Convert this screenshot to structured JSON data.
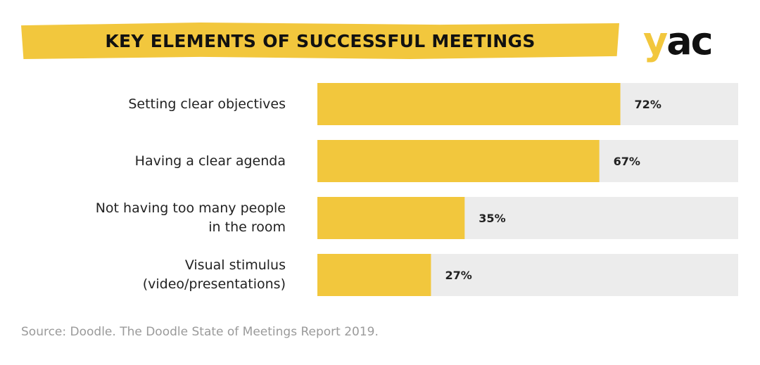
{
  "title": "KEY ELEMENTS OF SUCCESSFUL MEETINGS",
  "logo": {
    "text_y": "y",
    "text_ac": "ac"
  },
  "source": "Source: Doodle. The Doodle State of Meetings Report 2019.",
  "colors": {
    "bar": "#f2c73d",
    "track": "#ececec",
    "text": "#222222",
    "source": "#9a9a9a"
  },
  "chart_data": {
    "type": "bar",
    "orientation": "horizontal",
    "title": "KEY ELEMENTS OF SUCCESSFUL MEETINGS",
    "categories": [
      "Setting clear objectives",
      "Having a clear agenda",
      "Not having too many people in the room",
      "Visual stimulus (video/presentations)"
    ],
    "label_lines": [
      [
        "Setting clear objectives"
      ],
      [
        "Having a clear agenda"
      ],
      [
        "Not having too many people",
        "in the room"
      ],
      [
        "Visual stimulus",
        "(video/presentations)"
      ]
    ],
    "values": [
      72,
      67,
      35,
      27
    ],
    "value_labels": [
      "72%",
      "67%",
      "35%",
      "27%"
    ],
    "xlim": [
      0,
      100
    ],
    "grid": false,
    "legend": "none"
  }
}
